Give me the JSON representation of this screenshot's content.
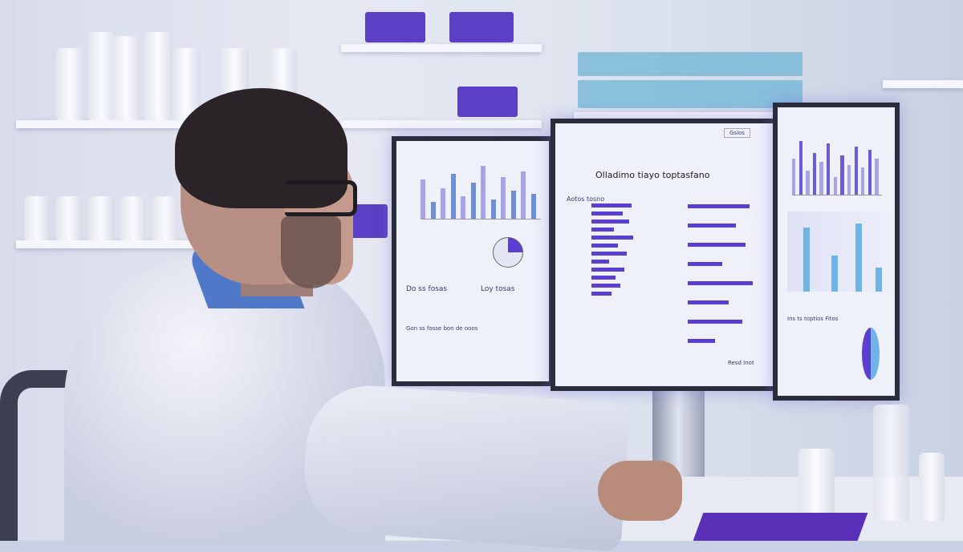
{
  "scene": "scientist-at-multi-monitor-workstation",
  "colors": {
    "accent": "#5b3fd0",
    "screen_bg": "#eef0fa",
    "coat": "#eceef6",
    "shelf_box": "#5b3fc4"
  },
  "center_screen": {
    "title": "Olladimo tiayo toptasfano",
    "section": "Aotos tosno",
    "footer": "Resd Inot",
    "button": "Gsios"
  },
  "left_screen": {
    "section_a": "Do ss fosas",
    "section_b": "Loy tosas",
    "footer": "Gon ss fosse bon de ooos"
  },
  "right_screen": {
    "section": "Ins ts toptios Fitos"
  },
  "left_chart_levels": [
    0.7,
    0.3,
    0.55,
    0.8,
    0.4,
    0.65,
    0.95,
    0.35,
    0.75,
    0.5,
    0.85,
    0.45
  ],
  "right_chart_levels": [
    0.6,
    0.9,
    0.4,
    0.7,
    0.55,
    0.85,
    0.3,
    0.65,
    0.5,
    0.8,
    0.45,
    0.75,
    0.6
  ],
  "hbar_levels": [
    0.9,
    0.7,
    0.85,
    0.5,
    0.95,
    0.6,
    0.8,
    0.4,
    0.75,
    0.55,
    0.65,
    0.45
  ]
}
